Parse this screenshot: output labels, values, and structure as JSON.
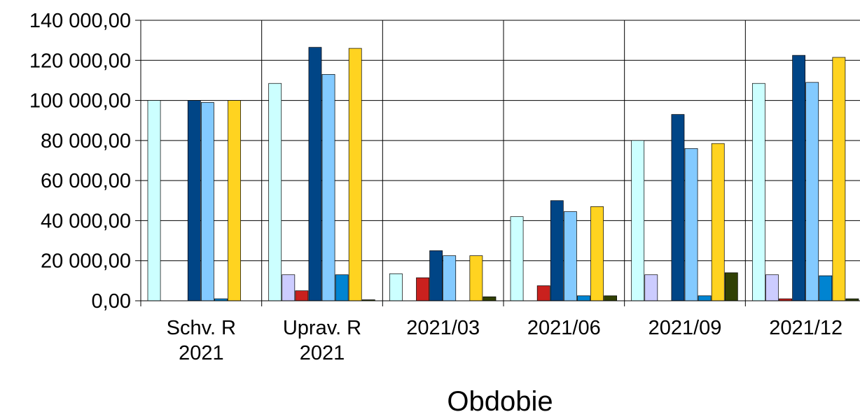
{
  "chart_data": {
    "type": "bar",
    "title": "",
    "xlabel": "Obdobie",
    "ylabel": "",
    "ylim": [
      0,
      140000
    ],
    "yticks": [
      0,
      20000,
      40000,
      60000,
      80000,
      100000,
      120000,
      140000
    ],
    "ytick_labels": [
      "0,00",
      "20 000,00",
      "40 000,00",
      "60 000,00",
      "80 000,00",
      "100 000,00",
      "120 000,00",
      "140 000,00"
    ],
    "grid": true,
    "legend": "none",
    "categories": [
      [
        "Schv. R",
        "2021"
      ],
      [
        "Uprav. R",
        "2021"
      ],
      [
        "2021/03"
      ],
      [
        "2021/06"
      ],
      [
        "2021/09"
      ],
      [
        "2021/12"
      ]
    ],
    "series": [
      {
        "color": "#ccffff",
        "values": [
          100000,
          108500,
          13500,
          42000,
          80000,
          108500
        ]
      },
      {
        "color": "#ccccff",
        "values": [
          0,
          13000,
          0,
          0,
          13000,
          13000
        ]
      },
      {
        "color": "#c9211e",
        "values": [
          0,
          5000,
          11500,
          7500,
          0,
          1000
        ]
      },
      {
        "color": "#004586",
        "values": [
          100000,
          126500,
          25000,
          50000,
          93000,
          122500
        ]
      },
      {
        "color": "#83caff",
        "values": [
          99000,
          113000,
          22500,
          44500,
          76000,
          109000
        ]
      },
      {
        "color": "#0084d1",
        "values": [
          1000,
          13000,
          0,
          2500,
          2500,
          12500
        ]
      },
      {
        "color": "#ffd320",
        "values": [
          100000,
          126000,
          22500,
          47000,
          78500,
          121500
        ]
      },
      {
        "color": "#314004",
        "values": [
          0,
          500,
          2000,
          2500,
          14000,
          1000
        ]
      }
    ]
  }
}
